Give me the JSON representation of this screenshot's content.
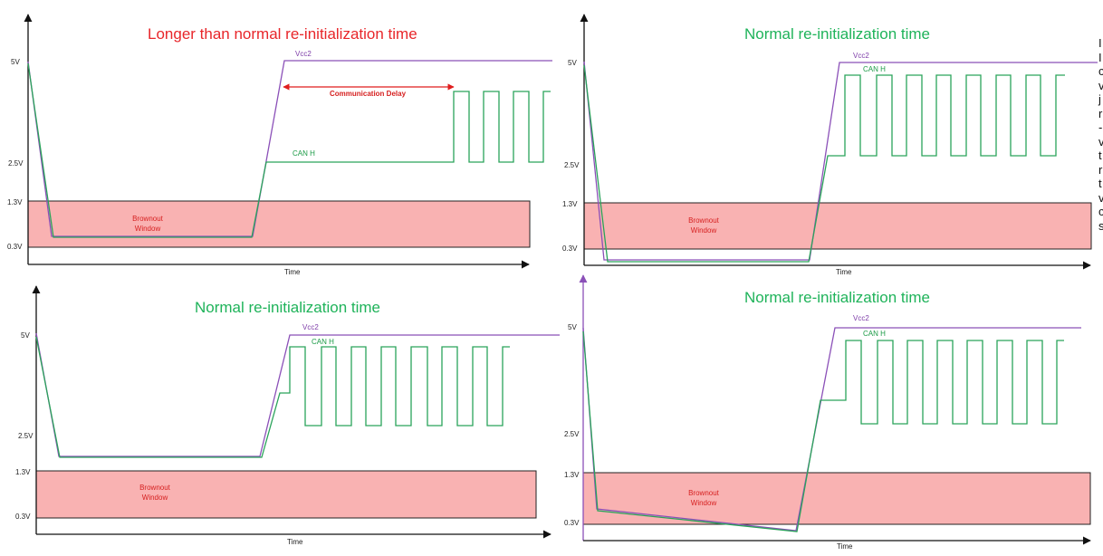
{
  "colors": {
    "vcc2": "#8b50b8",
    "can_h": "#2aa35a",
    "brownout": "#f9b2b2",
    "delay_arrow": "#e01e1e",
    "axis": "#111111"
  },
  "panels": [
    {
      "title": "Longer than normal re-initialization time",
      "title_color": "red",
      "ticks": [
        "5V",
        "2.5V",
        "1.3V",
        "0.3V"
      ],
      "vcc2_label": "Vcc2",
      "can_h_label": "CAN H",
      "brownout_line1": "Brownout",
      "brownout_line2": "Window",
      "time_label": "Time",
      "delay_label": "Communication Delay"
    },
    {
      "title": "Normal re-initialization time",
      "title_color": "green",
      "ticks": [
        "5V",
        "2.5V",
        "1.3V",
        "0.3V"
      ],
      "vcc2_label": "Vcc2",
      "can_h_label": "CAN H",
      "brownout_line1": "Brownout",
      "brownout_line2": "Window",
      "time_label": "Time"
    },
    {
      "title": "Normal re-initialization time",
      "title_color": "green",
      "ticks": [
        "5V",
        "2.5V",
        "1.3V",
        "0.3V"
      ],
      "vcc2_label": "Vcc2",
      "can_h_label": "CAN H",
      "brownout_line1": "Brownout",
      "brownout_line2": "Window",
      "time_label": "Time"
    },
    {
      "title": "Normal re-initialization time",
      "title_color": "green",
      "ticks": [
        "5V",
        "2.5V",
        "1.3V",
        "0.3V"
      ],
      "vcc2_label": "Vcc2",
      "can_h_label": "CAN H",
      "brownout_line1": "Brownout",
      "brownout_line2": "Window",
      "time_label": "Time"
    }
  ],
  "side_text_fragments": [
    "I",
    "I",
    "c",
    "v",
    "j",
    "r",
    "-",
    "v",
    "t",
    "r",
    "t",
    "v",
    "c",
    "s"
  ]
}
